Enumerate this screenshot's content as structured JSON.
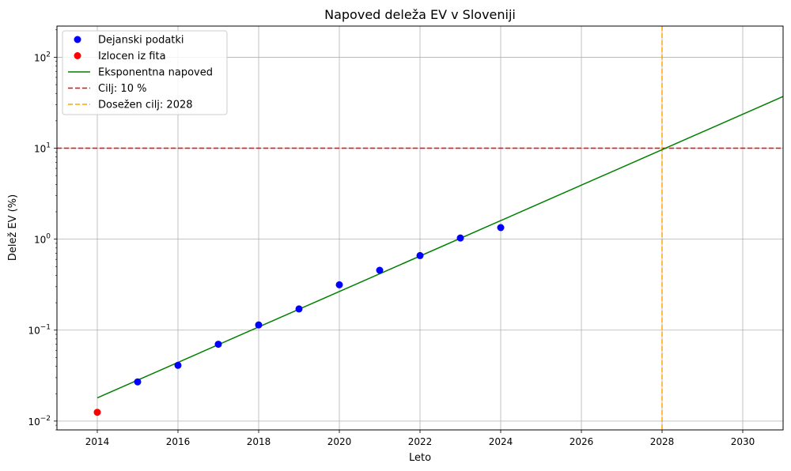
{
  "chart_data": {
    "type": "scatter",
    "title": "Napoved deleža EV v Sloveniji",
    "xlabel": "Leto",
    "ylabel": "Delež EV (%)",
    "xlim": [
      2013.0,
      2031.0
    ],
    "ylim": [
      0.008,
      220
    ],
    "yscale": "log",
    "grid": true,
    "legend_position": "top-left",
    "x_ticks": [
      2014,
      2016,
      2018,
      2020,
      2022,
      2024,
      2026,
      2028,
      2030
    ],
    "x_tick_labels": [
      "2014",
      "2016",
      "2018",
      "2020",
      "2022",
      "2024",
      "2026",
      "2028",
      "2030"
    ],
    "y_ticks": [
      {
        "value": 0.01,
        "base": "10",
        "exp": "−2"
      },
      {
        "value": 0.1,
        "base": "10",
        "exp": "−1"
      },
      {
        "value": 1,
        "base": "10",
        "exp": "0"
      },
      {
        "value": 10,
        "base": "10",
        "exp": "1"
      },
      {
        "value": 100,
        "base": "10",
        "exp": "2"
      }
    ],
    "series": [
      {
        "name": "Dejanski podatki",
        "kind": "scatter",
        "color": "#0000ff",
        "x": [
          2015,
          2016,
          2017,
          2018,
          2019,
          2020,
          2021,
          2022,
          2023,
          2024
        ],
        "y": [
          0.027,
          0.041,
          0.07,
          0.114,
          0.171,
          0.315,
          0.455,
          0.66,
          1.03,
          1.34
        ]
      },
      {
        "name": "Izlocen iz fita",
        "kind": "scatter",
        "color": "#ff0000",
        "x": [
          2014
        ],
        "y": [
          0.0125
        ]
      },
      {
        "name": "Eksponentna napoved",
        "kind": "line",
        "color": "#008000",
        "x": [
          2014,
          2031
        ],
        "y": [
          0.018,
          37
        ]
      },
      {
        "name": "Cilj: 10 %",
        "kind": "hline",
        "color": "#ff0000",
        "y": 10
      },
      {
        "name": "Dosežen cilj: 2028",
        "kind": "vline",
        "color": "#ffa500",
        "x": 2028
      }
    ]
  }
}
